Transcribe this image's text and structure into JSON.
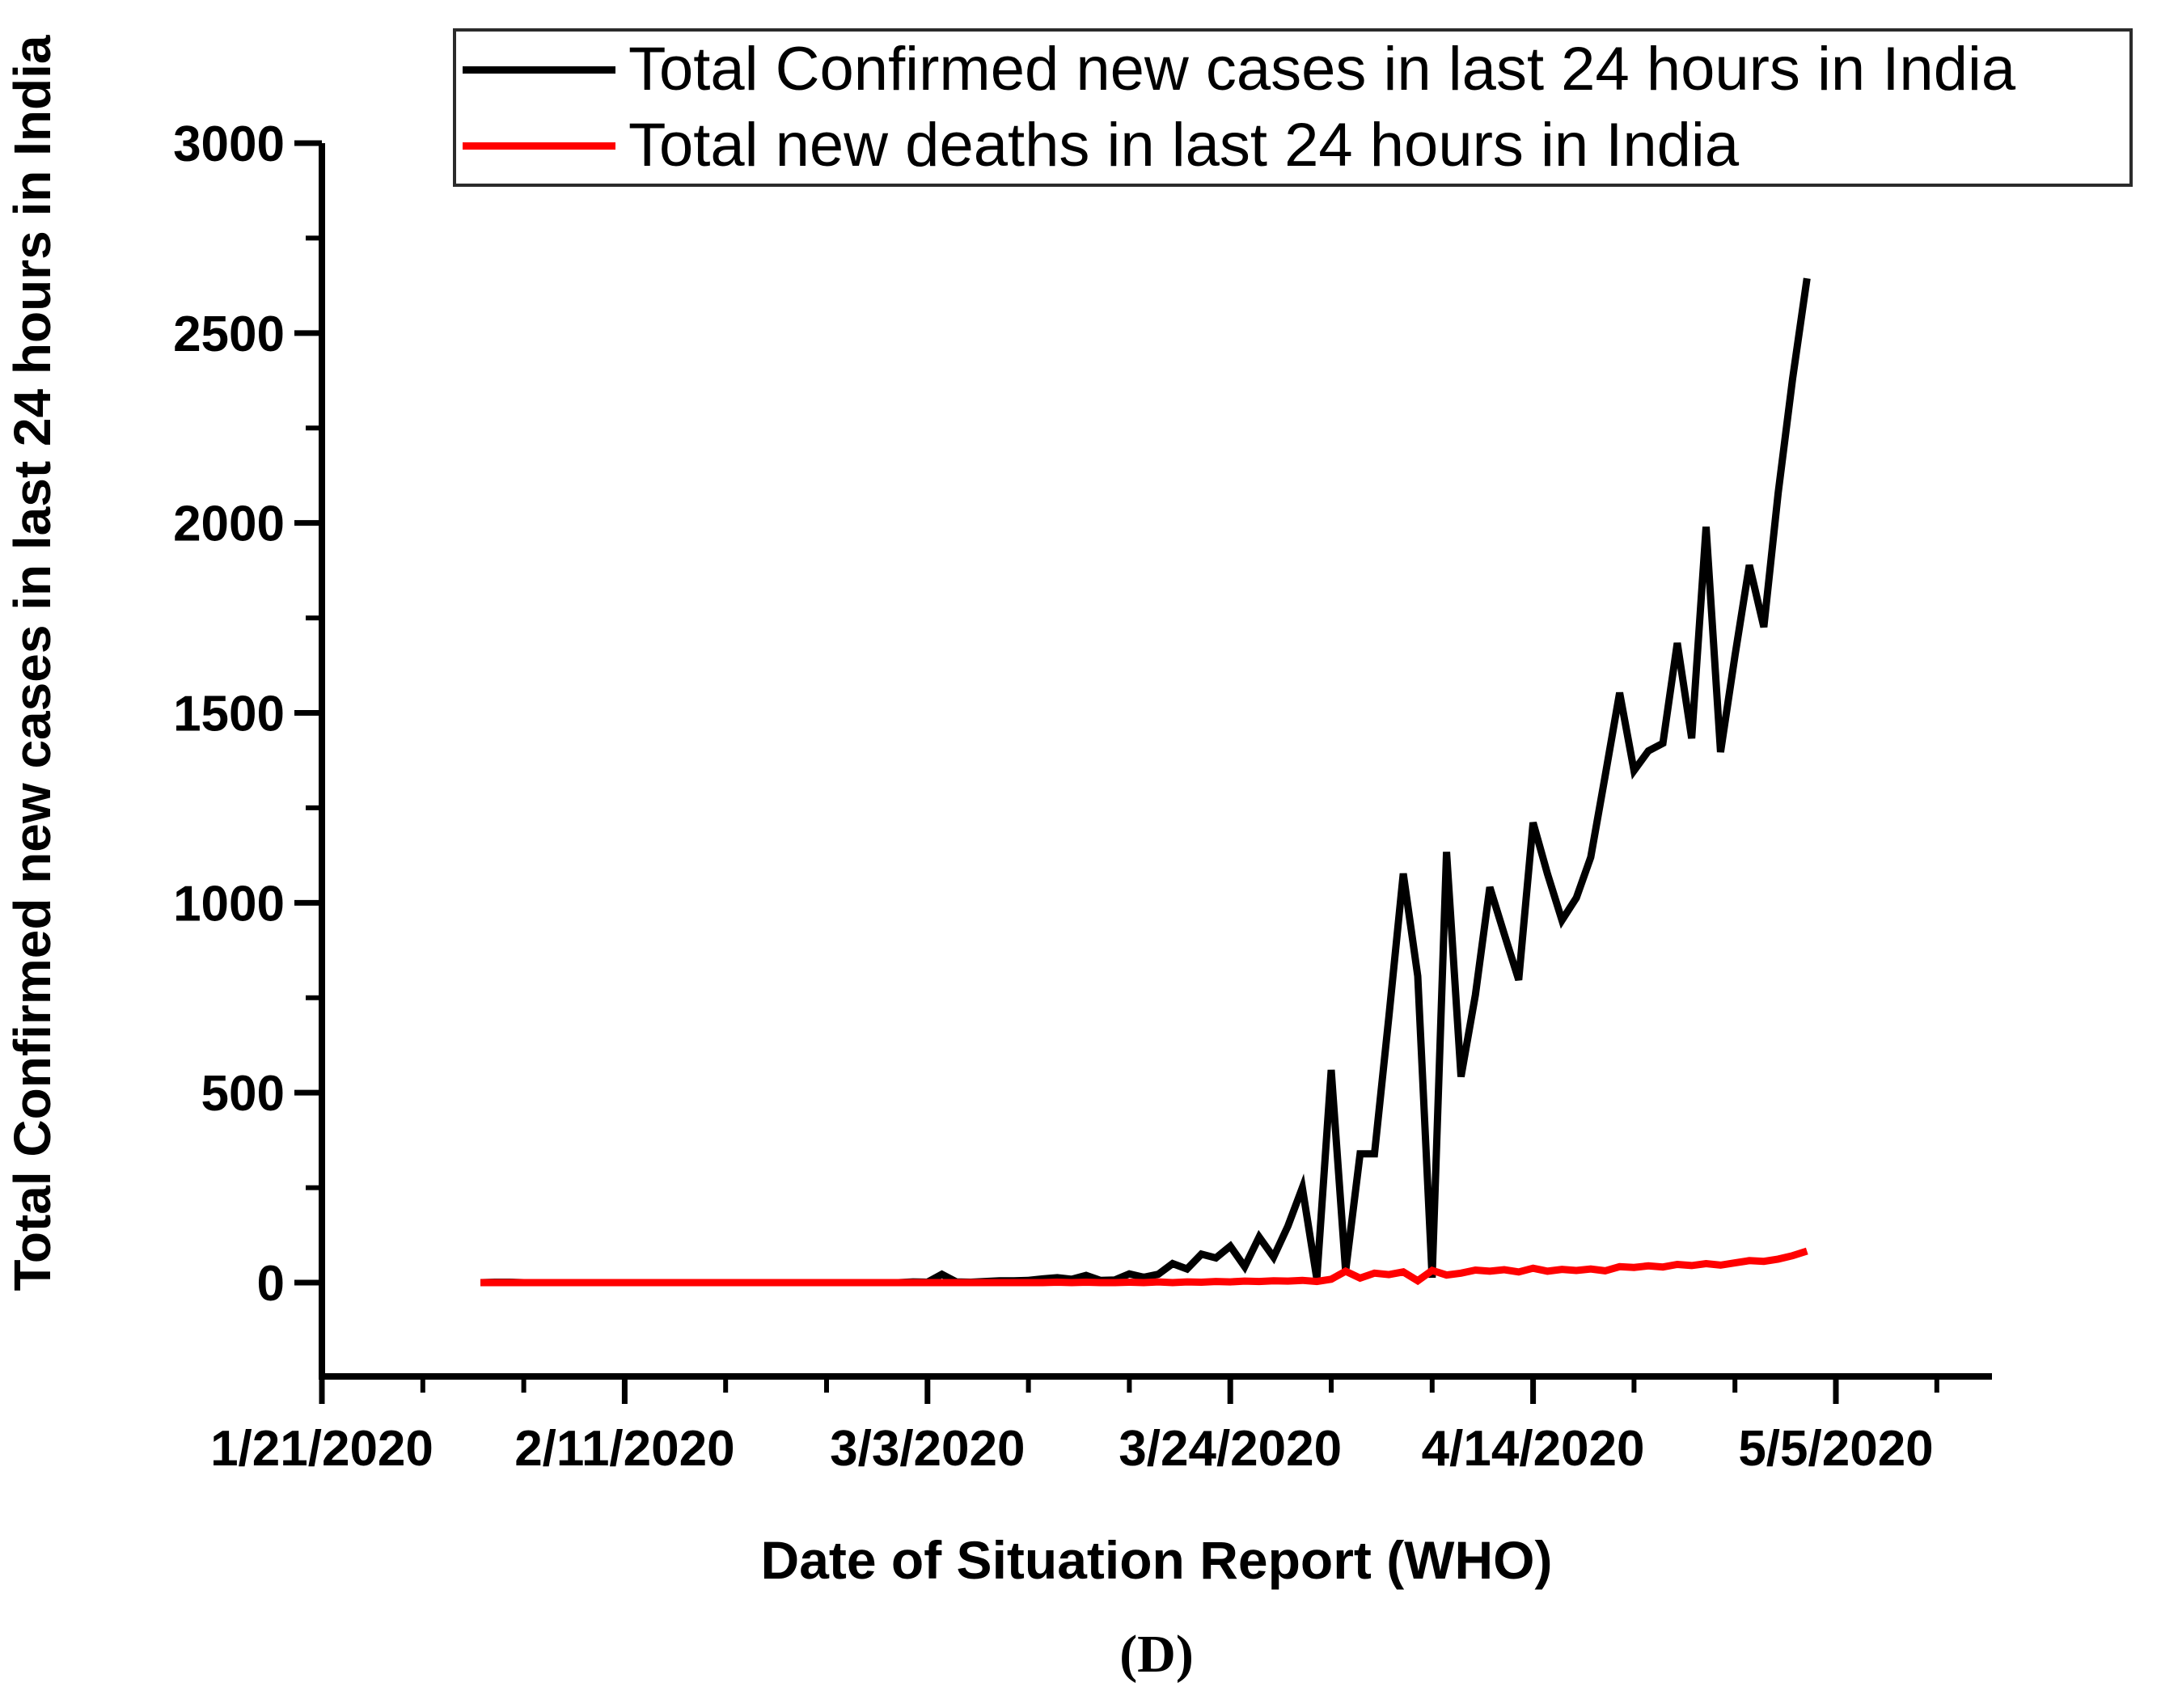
{
  "caption": "(D)",
  "legend": {
    "entries": [
      {
        "label": "Total Confirmed new cases in last 24 hours in India",
        "color": "#000000"
      },
      {
        "label": "Total new deaths in last 24 hours in India",
        "color": "#ff0000"
      }
    ]
  },
  "chart_data": {
    "type": "line",
    "title": "",
    "xlabel": "Date of Situation Report (WHO)",
    "ylabel": "Total Confirmed new cases in last 24 hours in India",
    "grid": false,
    "legend_position": "top",
    "x_axis": {
      "tick_labels": [
        "1/21/2020",
        "2/11/2020",
        "3/3/2020",
        "3/24/2020",
        "4/14/2020",
        "5/5/2020"
      ],
      "major_tick_days": [
        0,
        21,
        42,
        63,
        84,
        105
      ],
      "minor_tick_days": [
        7,
        14,
        28,
        35,
        49,
        56,
        70,
        77,
        91,
        98,
        112
      ],
      "axis_start_date": "1/21/2020",
      "axis_end_day": 115.8
    },
    "y_axis": {
      "major_ticks": [
        0,
        500,
        1000,
        1500,
        2000,
        2500,
        3000
      ],
      "minor_ticks": [
        250,
        750,
        1250,
        1750,
        2250,
        2750
      ],
      "min": -250,
      "max": 3000
    },
    "series": [
      {
        "name": "Total Confirmed new cases in last 24 hours in India",
        "color": "#000000",
        "start_date": "2/1/2020",
        "end_date": "5/3/2020",
        "start_day_offset": 11,
        "values": [
          0,
          1,
          1,
          0,
          0,
          0,
          0,
          0,
          0,
          0,
          0,
          0,
          0,
          0,
          0,
          0,
          0,
          0,
          0,
          0,
          0,
          0,
          0,
          0,
          0,
          0,
          0,
          0,
          0,
          0,
          2,
          1,
          22,
          2,
          1,
          3,
          5,
          5,
          6,
          10,
          13,
          9,
          19,
          6,
          7,
          23,
          14,
          22,
          50,
          36,
          75,
          65,
          96,
          42,
          120,
          67,
          149,
          250,
          10,
          560,
          30,
          339,
          339,
          700,
          1077,
          807,
          13,
          1134,
          542,
          758,
          1041,
          918,
          797,
          1211,
          1076,
          954,
          1013,
          1120,
          1334,
          1553,
          1348,
          1400,
          1420,
          1684,
          1433,
          1990,
          1397,
          1650,
          1889,
          1726,
          2080,
          2380,
          2644
        ]
      },
      {
        "name": "Total new deaths in last 24 hours in India",
        "color": "#ff0000",
        "start_date": "2/1/2020",
        "end_date": "5/3/2020",
        "start_day_offset": 11,
        "values": [
          0,
          0,
          0,
          0,
          0,
          0,
          0,
          0,
          0,
          0,
          0,
          0,
          0,
          0,
          0,
          0,
          0,
          0,
          0,
          0,
          0,
          0,
          0,
          0,
          0,
          0,
          0,
          0,
          0,
          0,
          0,
          0,
          0,
          0,
          0,
          0,
          0,
          0,
          0,
          0,
          1,
          0,
          1,
          0,
          0,
          1,
          0,
          2,
          0,
          2,
          1,
          3,
          2,
          4,
          3,
          5,
          4,
          6,
          3,
          9,
          30,
          12,
          25,
          21,
          28,
          5,
          32,
          20,
          25,
          33,
          30,
          34,
          28,
          38,
          30,
          35,
          32,
          36,
          31,
          42,
          40,
          44,
          41,
          48,
          45,
          50,
          46,
          52,
          58,
          56,
          62,
          71,
          83
        ]
      }
    ]
  }
}
